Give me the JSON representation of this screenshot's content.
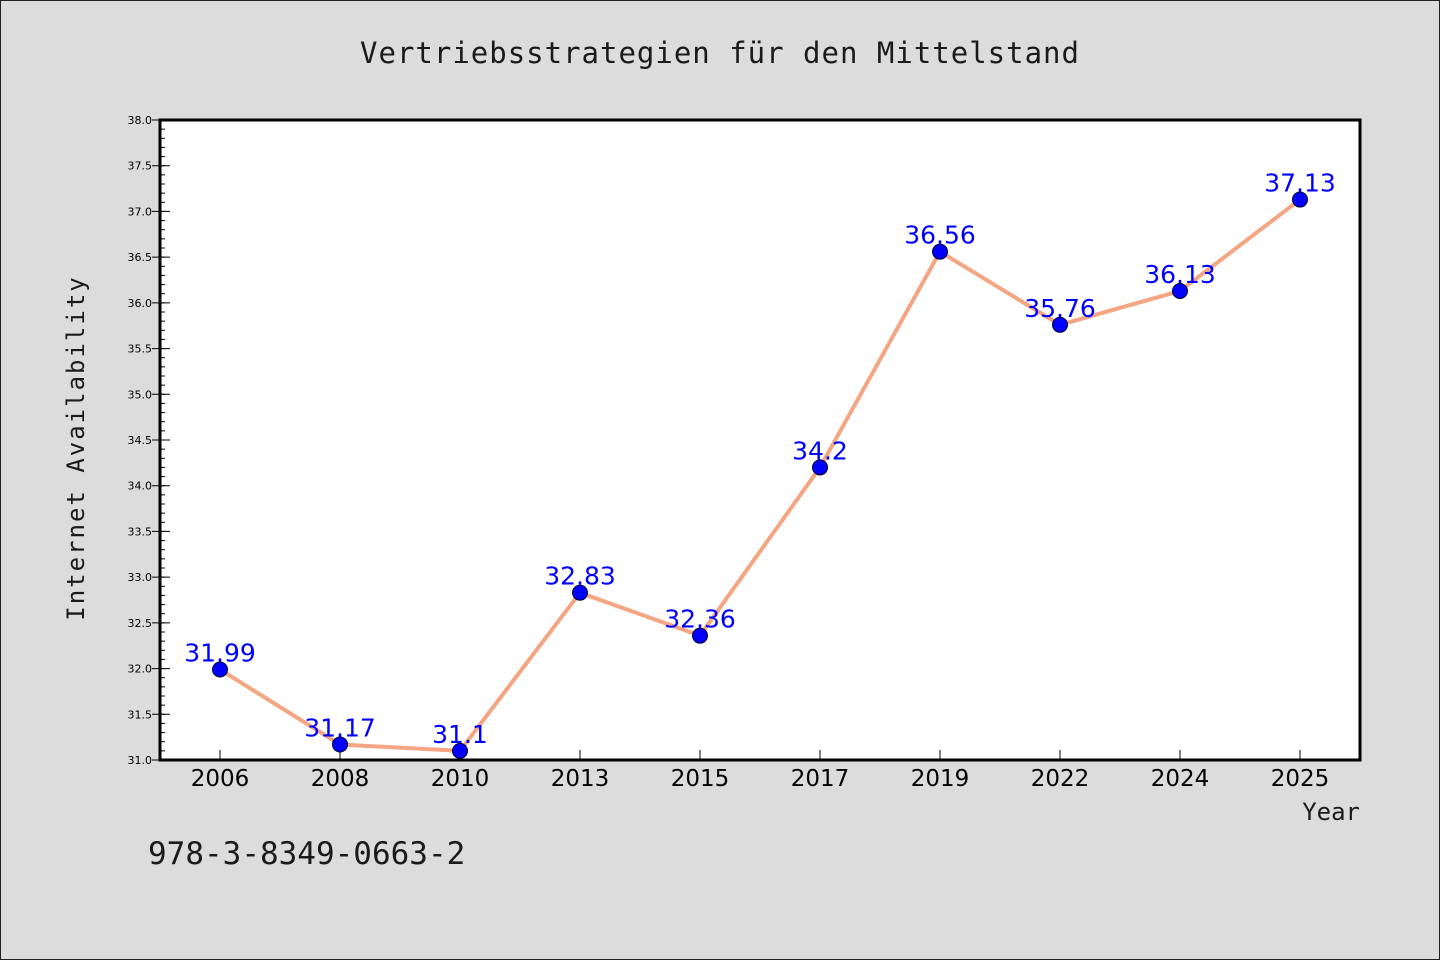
{
  "chart_data": {
    "type": "line",
    "title": "Vertriebsstrategien für den Mittelstand",
    "xlabel": "Year",
    "ylabel": "Internet Availability",
    "categories": [
      "2006",
      "2008",
      "2010",
      "2013",
      "2015",
      "2017",
      "2019",
      "2022",
      "2024",
      "2025"
    ],
    "series": [
      {
        "values": [
          31.99,
          31.17,
          31.1,
          32.83,
          32.36,
          34.2,
          36.56,
          35.76,
          36.13,
          37.13
        ],
        "data_labels": [
          "31.99",
          "31.17",
          "31.1",
          "32.83",
          "32.36",
          "34.2",
          "36.56",
          "35.76",
          "36.13",
          "37.13"
        ],
        "line_color": "#f4a582",
        "marker_color": "#0000ff"
      }
    ],
    "ylim": [
      31.0,
      38.0
    ],
    "yticks": [
      31.0,
      31.5,
      32.0,
      32.5,
      33.0,
      33.5,
      34.0,
      34.5,
      35.0,
      35.5,
      36.0,
      36.5,
      37.0,
      37.5,
      38.0
    ],
    "ytick_labels": [
      "31.0",
      "31.5",
      "32.0",
      "32.5",
      "33.0",
      "33.5",
      "34.0",
      "34.5",
      "35.0",
      "35.5",
      "36.0",
      "36.5",
      "37.0",
      "37.5",
      "38.0"
    ],
    "grid": false,
    "legend": "none"
  },
  "footer": {
    "isbn": "978-3-8349-0663-2"
  },
  "colors": {
    "background": "#dcdcdc",
    "plot_background": "#ffffff",
    "line": "#f4a582",
    "marker": "#0000ff",
    "data_label": "#0000ff"
  }
}
